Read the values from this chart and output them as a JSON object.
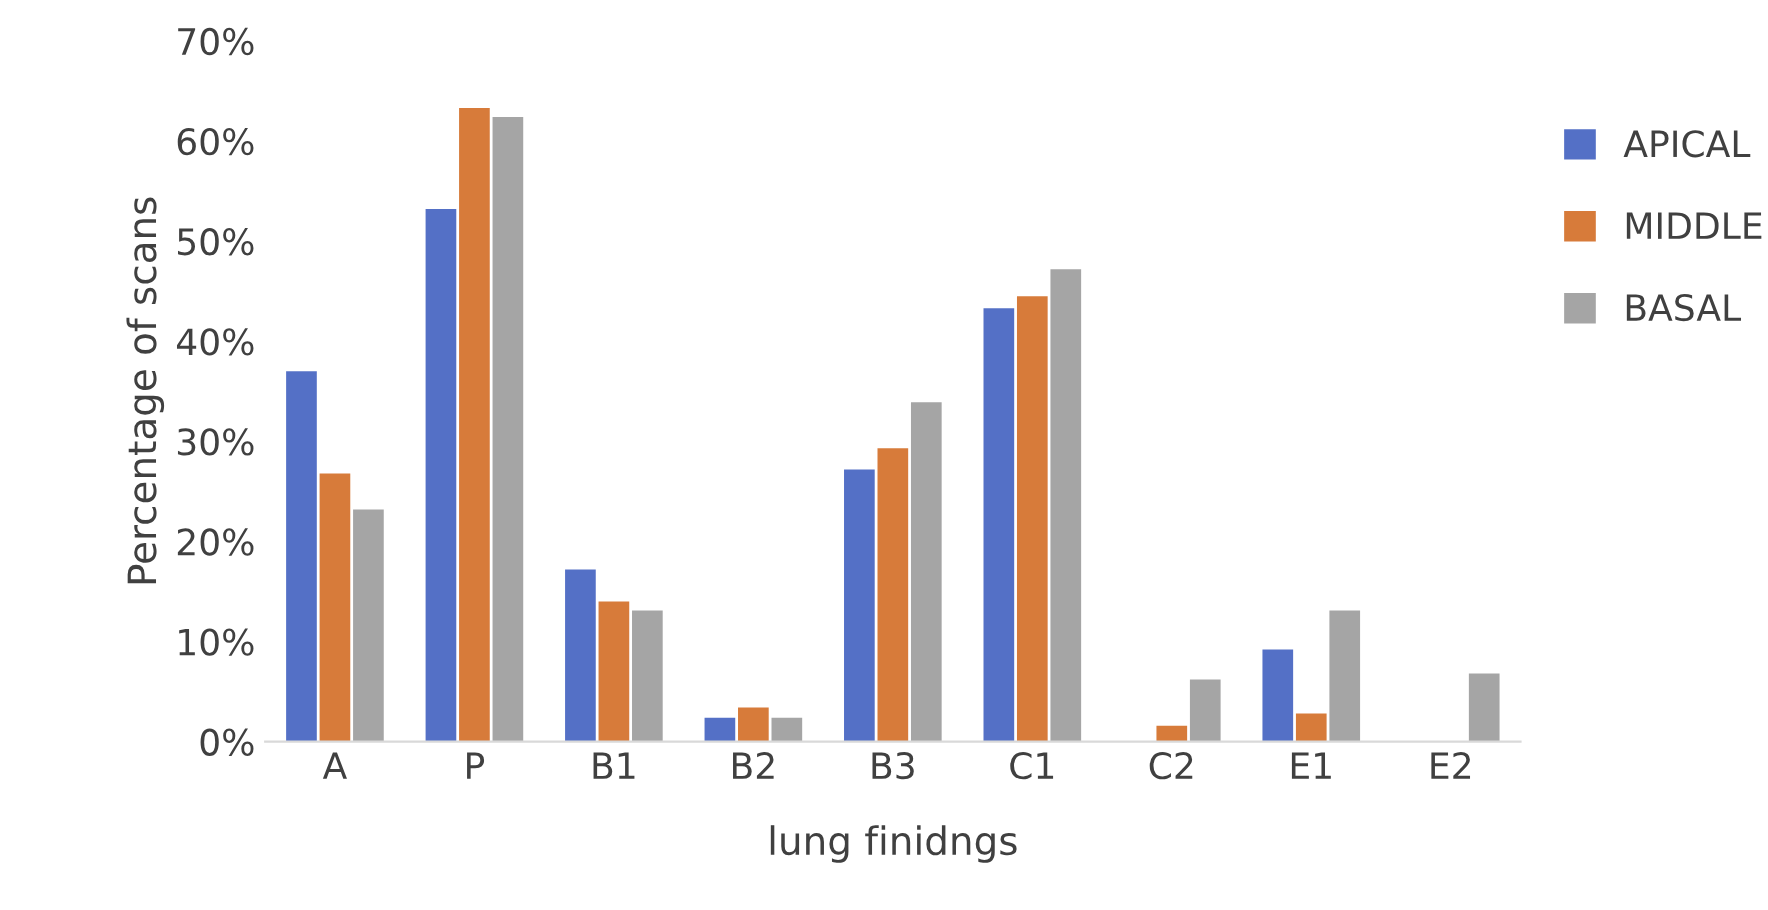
{
  "chart_data": {
    "type": "bar",
    "xlabel": "lung finidngs",
    "ylabel": "Percentage of scans",
    "categories": [
      "A",
      "P",
      "B1",
      "B2",
      "B3",
      "C1",
      "C2",
      "E1",
      "E2"
    ],
    "series": [
      {
        "name": "APICAL",
        "color": "#5470c6",
        "values": [
          37,
          53.2,
          17.2,
          2.4,
          27.2,
          43.3,
          0,
          9.2,
          0
        ]
      },
      {
        "name": "MIDDLE",
        "color": "#d77b3a",
        "values": [
          26.8,
          63.3,
          14.0,
          3.4,
          29.3,
          44.5,
          1.6,
          2.8,
          0
        ]
      },
      {
        "name": "BASAL",
        "color": "#a5a5a5",
        "values": [
          23.2,
          62.4,
          13.1,
          2.4,
          33.9,
          47.2,
          6.2,
          13.1,
          6.8
        ]
      }
    ],
    "ylim": [
      0,
      70
    ],
    "yticks": [
      {
        "value": 0,
        "label": "0%"
      },
      {
        "value": 10,
        "label": "10%"
      },
      {
        "value": 20,
        "label": "20%"
      },
      {
        "value": 30,
        "label": "30%"
      },
      {
        "value": 40,
        "label": "40%"
      },
      {
        "value": 50,
        "label": "50%"
      },
      {
        "value": 60,
        "label": "60%"
      },
      {
        "value": 70,
        "label": "70%"
      }
    ],
    "grid": false,
    "legend": "right"
  }
}
